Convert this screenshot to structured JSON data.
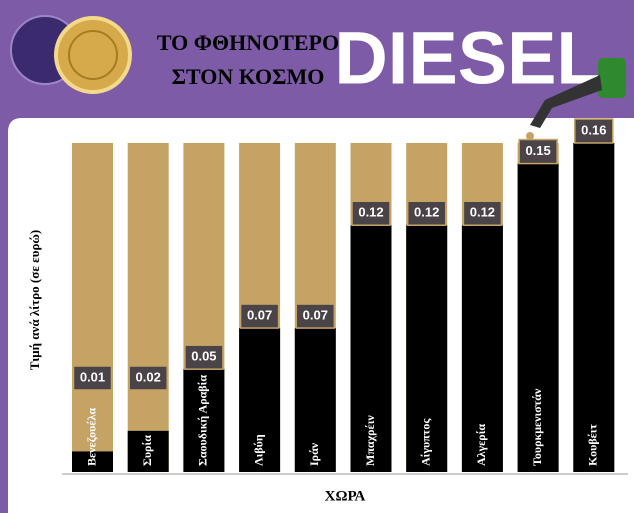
{
  "header": {
    "title_line1": "ΤΟ ΦΘΗΝΟΤΕΡΟ",
    "title_line2": "ΣΤΟΝ ΚΟΣΜΟ",
    "brand": "DIESEL"
  },
  "chart_data": {
    "type": "bar",
    "y_label": "Τιμή ανά λίτρο (σε ευρώ)",
    "x_label": "ΧΩΡΑ",
    "categories": [
      "Βενεζουέλα",
      "Συρία",
      "Σαουδική Αραβία",
      "Λιβύη",
      "Ιράν",
      "Μπαχρέιν",
      "Αίγυπτος",
      "Αλγερία",
      "Τουρκμενιστάν",
      "Κουβέιτ"
    ],
    "values": [
      0.01,
      0.02,
      0.05,
      0.07,
      0.07,
      0.12,
      0.12,
      0.12,
      0.15,
      0.16
    ],
    "color": "#000000",
    "background_color": "#c4a365"
  }
}
